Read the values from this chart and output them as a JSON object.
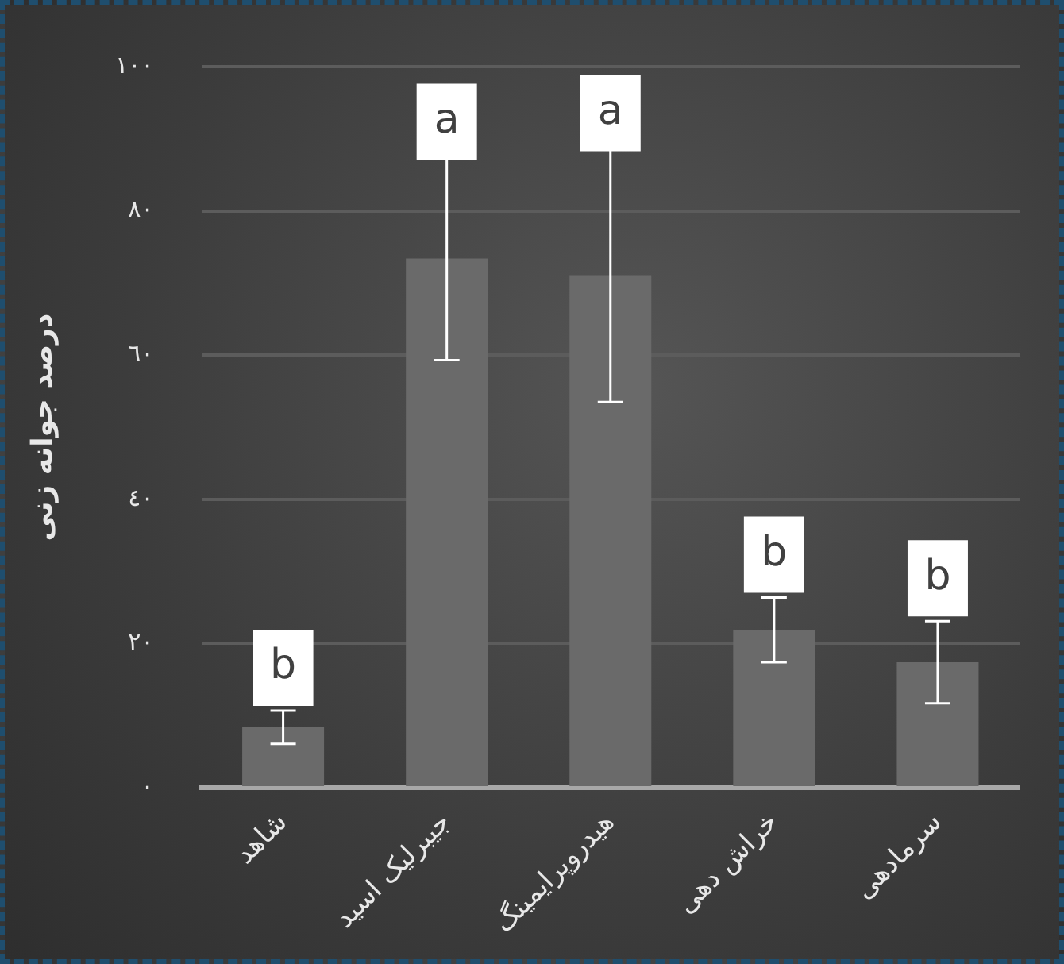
{
  "chart_data": {
    "type": "bar",
    "ylabel": "درصد جوانه زنی",
    "categories": [
      "شاهد",
      "جیبرلیک اسید",
      "هیدروپرایمینگ",
      "خراش دهی",
      "سرمادهی"
    ],
    "values": [
      8.4,
      73.4,
      71.1,
      21.9,
      17.4
    ],
    "errors": [
      2.3,
      14.1,
      17.6,
      4.5,
      5.7
    ],
    "color": "#6a6a6a",
    "ylim": [
      0,
      100
    ],
    "yticks": [
      {
        "value": 0,
        "label": "٠"
      },
      {
        "value": 20,
        "label": "٢٠"
      },
      {
        "value": 40,
        "label": "٤٠"
      },
      {
        "value": 60,
        "label": "٦٠"
      },
      {
        "value": 80,
        "label": "٨٠"
      },
      {
        "value": 100,
        "label": "١٠٠"
      }
    ],
    "grid": "y",
    "legend": false,
    "annotations": [
      "b",
      "a",
      "a",
      "b",
      "b"
    ]
  }
}
